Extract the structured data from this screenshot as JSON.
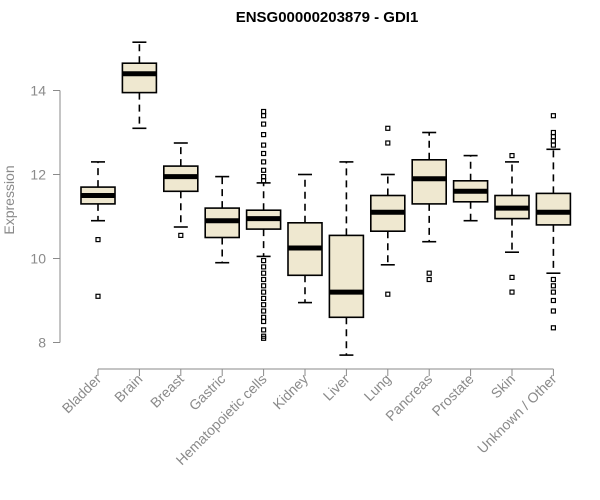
{
  "chart_data": {
    "type": "box",
    "title": "ENSG00000203879 - GDI1",
    "xlabel": "",
    "ylabel": "Expression",
    "ylim": [
      7.4,
      15.5
    ],
    "yticks": [
      8,
      10,
      12,
      14
    ],
    "grid": false,
    "legend": "none",
    "colors": {
      "box_fill": "#efe8d0",
      "stroke": "#000000",
      "axis": "#8a8a8a"
    },
    "categories": [
      "Bladder",
      "Brain",
      "Breast",
      "Gastric",
      "Hematopoietic cells",
      "Kidney",
      "Liver",
      "Lung",
      "Pancreas",
      "Prostate",
      "Skin",
      "Unknown / Other"
    ],
    "boxes": [
      {
        "q1": 11.3,
        "median": 11.5,
        "q3": 11.7,
        "wlo": 10.9,
        "whi": 12.3,
        "outliers": [
          10.45,
          9.1
        ]
      },
      {
        "q1": 13.95,
        "median": 14.4,
        "q3": 14.65,
        "wlo": 13.1,
        "whi": 15.15,
        "outliers": []
      },
      {
        "q1": 11.6,
        "median": 11.95,
        "q3": 12.2,
        "wlo": 10.75,
        "whi": 12.75,
        "outliers": [
          10.55
        ]
      },
      {
        "q1": 10.5,
        "median": 10.9,
        "q3": 11.2,
        "wlo": 9.9,
        "whi": 11.95,
        "outliers": []
      },
      {
        "q1": 10.7,
        "median": 10.95,
        "q3": 11.15,
        "wlo": 10.05,
        "whi": 11.8,
        "outliers": [
          13.5,
          13.4,
          13.2,
          12.95,
          12.7,
          12.5,
          12.3,
          12.1,
          11.95,
          11.85,
          9.95,
          9.8,
          9.65,
          9.5,
          9.35,
          9.2,
          9.05,
          8.9,
          8.75,
          8.6,
          8.5,
          8.3,
          8.15,
          8.1
        ]
      },
      {
        "q1": 9.6,
        "median": 10.25,
        "q3": 10.85,
        "wlo": 8.95,
        "whi": 12.0,
        "outliers": []
      },
      {
        "q1": 8.6,
        "median": 9.2,
        "q3": 10.55,
        "wlo": 7.7,
        "whi": 12.3,
        "outliers": []
      },
      {
        "q1": 10.65,
        "median": 11.1,
        "q3": 11.5,
        "wlo": 9.85,
        "whi": 12.0,
        "outliers": [
          13.1,
          12.75,
          9.15
        ]
      },
      {
        "q1": 11.3,
        "median": 11.9,
        "q3": 12.35,
        "wlo": 10.4,
        "whi": 13.0,
        "outliers": [
          9.65,
          9.5
        ]
      },
      {
        "q1": 11.35,
        "median": 11.6,
        "q3": 11.85,
        "wlo": 10.9,
        "whi": 12.45,
        "outliers": []
      },
      {
        "q1": 10.95,
        "median": 11.2,
        "q3": 11.5,
        "wlo": 10.15,
        "whi": 12.3,
        "outliers": [
          12.45,
          9.55,
          9.2
        ]
      },
      {
        "q1": 10.8,
        "median": 11.1,
        "q3": 11.55,
        "wlo": 9.65,
        "whi": 12.6,
        "outliers": [
          13.4,
          13.0,
          12.9,
          12.8,
          12.7,
          9.5,
          9.35,
          9.2,
          9.0,
          8.75,
          8.35
        ]
      }
    ]
  }
}
